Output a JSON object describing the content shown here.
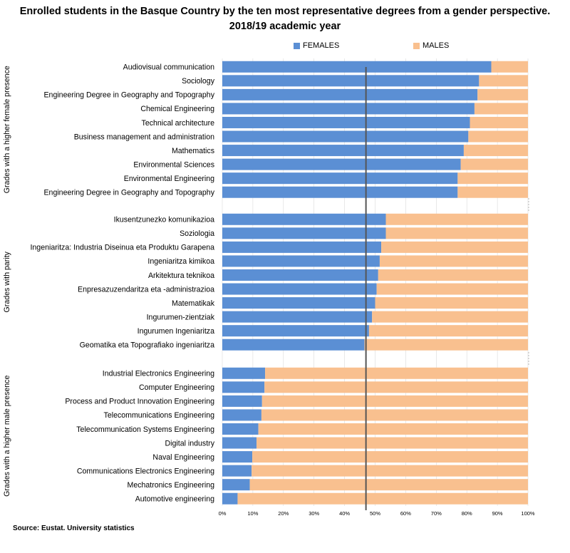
{
  "title_line1": "Enrolled students in the Basque Country by the ten most representative degrees from a gender perspective.",
  "title_line2": "2018/19 academic year",
  "source": "Source: Eustat. University statistics",
  "colors": {
    "females": "#5b8fd4",
    "males": "#f9c08f",
    "reference_line": "#555555"
  },
  "chart_data": {
    "type": "bar",
    "orientation": "horizontal",
    "stacked": "100%",
    "legend_position": "top",
    "reference_line_value": 47,
    "xlim": [
      0,
      100
    ],
    "x_ticks": [
      "0%",
      "10%",
      "20%",
      "30%",
      "40%",
      "50%",
      "60%",
      "70%",
      "80%",
      "90%",
      "100%"
    ],
    "series": [
      {
        "name": "FEMALES",
        "color": "#5b8fd4"
      },
      {
        "name": "MALES",
        "color": "#f9c08f"
      }
    ],
    "groups": [
      {
        "label": "Grades with a higher female presence",
        "categories": [
          {
            "label": "Audiovisual communication",
            "female": 88
          },
          {
            "label": "Sociology",
            "female": 84
          },
          {
            "label": "Engineering Degree in Geography and Topography",
            "female": 83.5
          },
          {
            "label": "Chemical Engineering",
            "female": 82.5
          },
          {
            "label": "Technical architecture",
            "female": 81
          },
          {
            "label": "Business management and administration",
            "female": 80.5
          },
          {
            "label": "Mathematics",
            "female": 79
          },
          {
            "label": "Environmental Sciences",
            "female": 78
          },
          {
            "label": "Environmental Engineering",
            "female": 77
          },
          {
            "label": "Engineering Degree in Geography and Topography",
            "female": 77
          }
        ]
      },
      {
        "label": "Grades with parity",
        "categories": [
          {
            "label": "Ikusentzunezko komunikazioa",
            "female": 53.5
          },
          {
            "label": "Soziologia",
            "female": 53.5
          },
          {
            "label": "Ingeniaritza: Industria Diseinua eta Produktu Garapena",
            "female": 52
          },
          {
            "label": "Ingeniaritza kimikoa",
            "female": 51.5
          },
          {
            "label": "Arkitektura teknikoa",
            "female": 51
          },
          {
            "label": "Enpresazuzendaritza eta -administrazioa",
            "female": 50.5
          },
          {
            "label": "Matematikak",
            "female": 50
          },
          {
            "label": "Ingurumen-zientziak",
            "female": 49
          },
          {
            "label": "Ingurumen Ingeniaritza",
            "female": 48
          },
          {
            "label": "Geomatika eta Topografiako ingeniaritza",
            "female": 46.5
          }
        ]
      },
      {
        "label": "Grades with a higher male presence",
        "categories": [
          {
            "label": "Industrial Electronics Engineering",
            "female": 14
          },
          {
            "label": "Computer Engineering",
            "female": 13.8
          },
          {
            "label": "Process and Product Innovation Engineering",
            "female": 13
          },
          {
            "label": "Telecommunications Engineering",
            "female": 12.8
          },
          {
            "label": "Telecommunication Systems Engineering",
            "female": 11.8
          },
          {
            "label": "Digital industry",
            "female": 11.2
          },
          {
            "label": "Naval Engineering",
            "female": 9.8
          },
          {
            "label": "Communications Electronics Engineering",
            "female": 9.6
          },
          {
            "label": "Mechatronics Engineering",
            "female": 9
          },
          {
            "label": "Automotive engineering",
            "female": 5
          }
        ]
      }
    ]
  }
}
